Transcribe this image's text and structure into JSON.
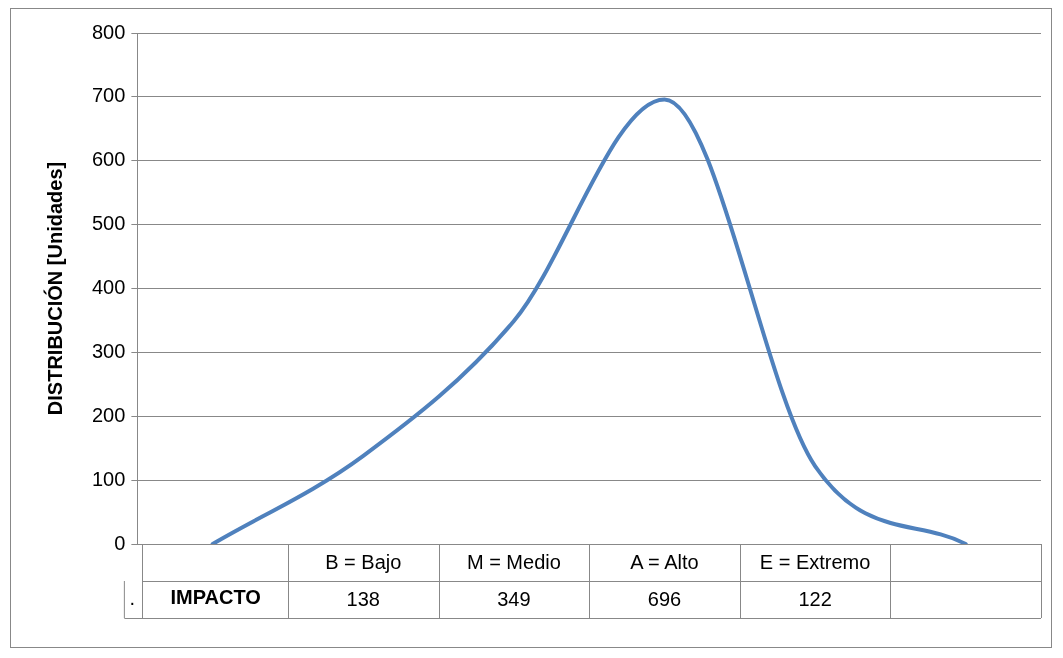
{
  "chart_data": {
    "type": "line",
    "ylabel": "DISTRIBUCIÓN [Unidades]",
    "categories": [
      null,
      "B = Bajo",
      "M = Medio",
      "A = Alto",
      "E = Extremo",
      null
    ],
    "series": [
      {
        "name": "IMPACTO",
        "color": "#4f81bd",
        "values": [
          0,
          138,
          349,
          696,
          122,
          0
        ],
        "value_labels": [
          null,
          "138",
          "349",
          "696",
          "122",
          null
        ]
      }
    ],
    "ylim": [
      0,
      800
    ],
    "yticks": [
      0,
      100,
      200,
      300,
      400,
      500,
      600,
      700,
      800
    ],
    "grid": "y",
    "legend": false,
    "marker": "none",
    "line_style": "solid",
    "annotations": [
      "."
    ]
  }
}
